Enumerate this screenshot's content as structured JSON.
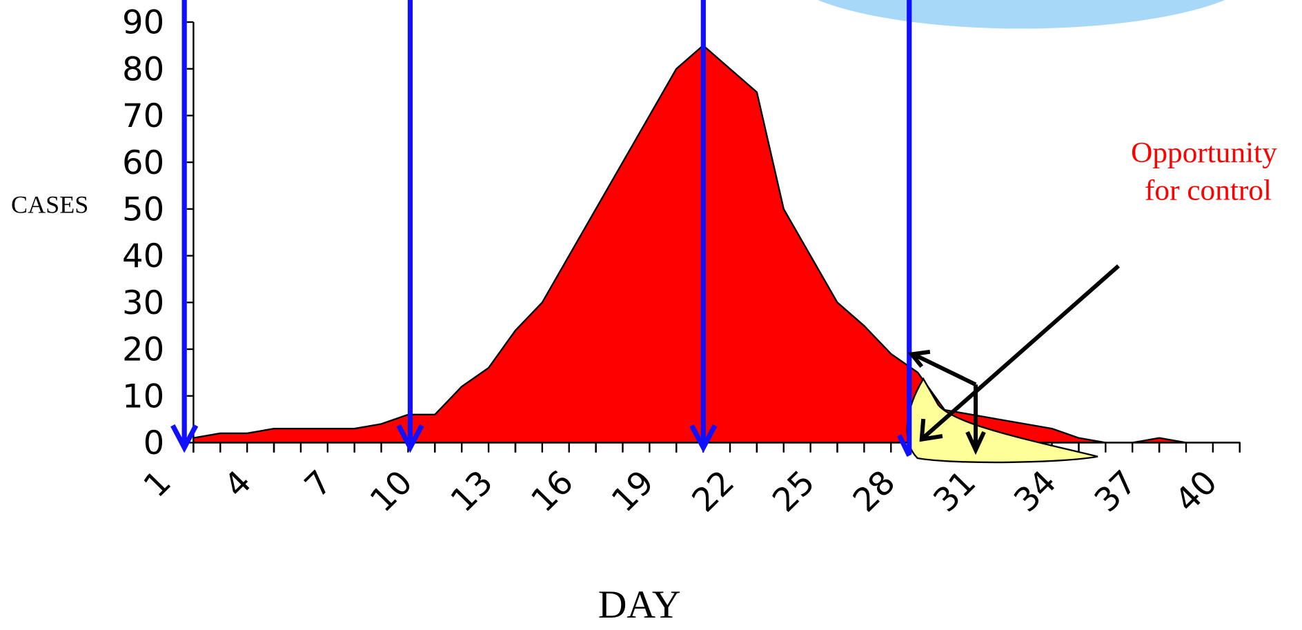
{
  "chart_data": {
    "type": "area",
    "y_label": "CASES",
    "x_label": "DAY",
    "annotation": [
      "Opportunity",
      "for control"
    ],
    "color": "#ff0000",
    "x": [
      1,
      2,
      3,
      4,
      5,
      6,
      7,
      8,
      9,
      10,
      11,
      12,
      13,
      14,
      15,
      16,
      17,
      18,
      19,
      20,
      21,
      22,
      23,
      24,
      25,
      26,
      27,
      28,
      29,
      30,
      31,
      32,
      33,
      34,
      35,
      36,
      37,
      38,
      39,
      40
    ],
    "values": [
      1,
      2,
      2,
      3,
      3,
      3,
      3,
      4,
      6,
      6,
      12,
      16,
      24,
      30,
      40,
      50,
      60,
      70,
      80,
      85,
      80,
      75,
      50,
      40,
      30,
      25,
      19,
      15,
      7,
      6,
      5,
      4,
      3,
      1,
      0,
      0,
      1,
      0,
      0,
      0
    ],
    "xlim": [
      1,
      40
    ],
    "xticks": [
      1,
      4,
      7,
      10,
      13,
      16,
      19,
      22,
      25,
      28,
      31,
      34,
      37,
      40
    ],
    "ylim": [
      0,
      90
    ],
    "yticks": [
      0,
      10,
      20,
      30,
      40,
      50,
      60,
      70,
      80,
      90
    ],
    "grid": false
  }
}
